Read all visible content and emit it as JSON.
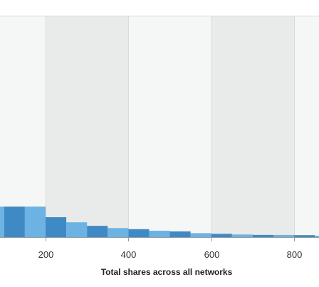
{
  "chart_data": {
    "type": "bar",
    "xlabel": "Total shares across all networks",
    "ylabel": "",
    "xlim": [
      90,
      860
    ],
    "ylim": [
      0,
      100
    ],
    "xticks": [
      "200",
      "400",
      "600",
      "800"
    ],
    "xtick_values": [
      200,
      400,
      600,
      800
    ],
    "grid": true,
    "bin_width": 50,
    "bins": [
      {
        "x0": 50,
        "x1": 100,
        "value": 13.8
      },
      {
        "x0": 100,
        "x1": 150,
        "value": 13.8
      },
      {
        "x0": 150,
        "x1": 200,
        "value": 13.8
      },
      {
        "x0": 200,
        "x1": 250,
        "value": 9.0
      },
      {
        "x0": 250,
        "x1": 300,
        "value": 6.7
      },
      {
        "x0": 300,
        "x1": 350,
        "value": 5.1
      },
      {
        "x0": 350,
        "x1": 400,
        "value": 4.1
      },
      {
        "x0": 400,
        "x1": 450,
        "value": 3.6
      },
      {
        "x0": 450,
        "x1": 500,
        "value": 2.9
      },
      {
        "x0": 500,
        "x1": 550,
        "value": 2.6
      },
      {
        "x0": 550,
        "x1": 600,
        "value": 1.8
      },
      {
        "x0": 600,
        "x1": 650,
        "value": 1.5
      },
      {
        "x0": 650,
        "x1": 700,
        "value": 1.2
      },
      {
        "x0": 700,
        "x1": 750,
        "value": 1.0
      },
      {
        "x0": 750,
        "x1": 800,
        "value": 1.0
      },
      {
        "x0": 800,
        "x1": 850,
        "value": 0.9
      },
      {
        "x0": 850,
        "x1": 900,
        "value": 0.6
      }
    ],
    "colors": {
      "bar_dark": "#3f89c5",
      "bar_light": "#6cb3e3",
      "band_light": "#f5f6f6",
      "band_dark": "#e9eaea",
      "grid_line": "#d9d9d9",
      "axis_line": "#9a9a9a"
    }
  }
}
